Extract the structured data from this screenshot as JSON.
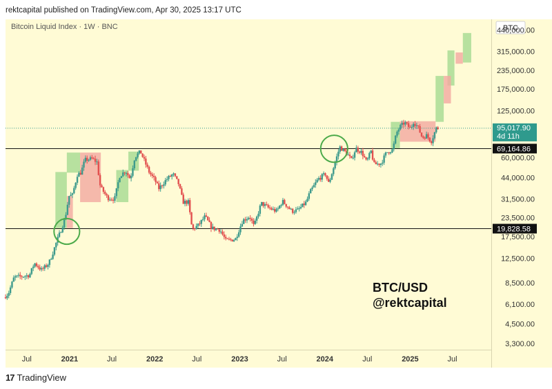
{
  "header": {
    "text": "rektcapital published on TradingView.com, Apr 30, 2025 13:17 UTC"
  },
  "chart": {
    "title": "Bitcoin Liquid Index · 1W · BNC"
  },
  "watermark": {
    "line1": "BTC/USD",
    "line2": "@rektcapital"
  },
  "footer": {
    "brand": "TradingView",
    "logo": "17"
  },
  "colors": {
    "up": "#3d9a8c",
    "down": "#e2504f",
    "green_zone": "#9fd88c",
    "red_zone": "#f3a9a0",
    "circle": "#4caa4a",
    "price_badge": "#2f9a8d"
  },
  "chart_data": {
    "type": "candlestick",
    "scale": "log",
    "ylim": [
      3000,
      520000
    ],
    "xlim": [
      "2020-04-01",
      "2025-12-15"
    ],
    "y_ticks": [
      440000,
      315000,
      235000,
      175000,
      125000,
      95017.9,
      60000,
      44000,
      31500,
      23500,
      17500,
      12500,
      8500,
      6100,
      4500,
      3300
    ],
    "y_tick_labels": [
      "440,000.00",
      "315,000.00",
      "235,000.00",
      "175,000.00",
      "125,000.00",
      "95,017.90",
      "60,000.00",
      "44,000.00",
      "31,500.00",
      "23,500.00",
      "17,500.00",
      "12,500.00",
      "8,500.00",
      "6,100.00",
      "4,500.00",
      "3,300.00"
    ],
    "y_axis_label": "BTC",
    "x_ticks": [
      {
        "date": "2020-07-01",
        "label": "Jul",
        "bold": false
      },
      {
        "date": "2021-01-01",
        "label": "2021",
        "bold": true
      },
      {
        "date": "2021-07-01",
        "label": "Jul",
        "bold": false
      },
      {
        "date": "2022-01-01",
        "label": "2022",
        "bold": true
      },
      {
        "date": "2022-07-01",
        "label": "Jul",
        "bold": false
      },
      {
        "date": "2023-01-01",
        "label": "2023",
        "bold": true
      },
      {
        "date": "2023-07-01",
        "label": "Jul",
        "bold": false
      },
      {
        "date": "2024-01-01",
        "label": "2024",
        "bold": true
      },
      {
        "date": "2024-07-01",
        "label": "Jul",
        "bold": false
      },
      {
        "date": "2025-01-01",
        "label": "2025",
        "bold": true
      },
      {
        "date": "2025-07-01",
        "label": "Jul",
        "bold": false
      }
    ],
    "price_path": [
      [
        "2020-04-01",
        6800
      ],
      [
        "2020-04-20",
        7200
      ],
      [
        "2020-05-15",
        9300
      ],
      [
        "2020-06-15",
        9400
      ],
      [
        "2020-07-20",
        9600
      ],
      [
        "2020-08-10",
        11600
      ],
      [
        "2020-09-10",
        10400
      ],
      [
        "2020-10-10",
        11500
      ],
      [
        "2020-10-25",
        13200
      ],
      [
        "2020-11-15",
        16500
      ],
      [
        "2020-12-01",
        19200
      ],
      [
        "2020-12-20",
        23500
      ],
      [
        "2021-01-05",
        33000
      ],
      [
        "2021-01-20",
        33500
      ],
      [
        "2021-02-10",
        46000
      ],
      [
        "2021-02-25",
        47500
      ],
      [
        "2021-03-15",
        58000
      ],
      [
        "2021-04-15",
        59000
      ],
      [
        "2021-05-05",
        56000
      ],
      [
        "2021-05-20",
        38000
      ],
      [
        "2021-06-20",
        32000
      ],
      [
        "2021-07-20",
        31500
      ],
      [
        "2021-08-10",
        45000
      ],
      [
        "2021-09-05",
        49000
      ],
      [
        "2021-09-25",
        43000
      ],
      [
        "2021-10-15",
        61000
      ],
      [
        "2021-11-08",
        66000
      ],
      [
        "2021-11-25",
        57000
      ],
      [
        "2021-12-15",
        48000
      ],
      [
        "2022-01-10",
        42000
      ],
      [
        "2022-01-25",
        37000
      ],
      [
        "2022-03-01",
        43000
      ],
      [
        "2022-03-28",
        46500
      ],
      [
        "2022-04-20",
        40000
      ],
      [
        "2022-05-10",
        30000
      ],
      [
        "2022-06-01",
        30000
      ],
      [
        "2022-06-18",
        19500
      ],
      [
        "2022-07-15",
        21000
      ],
      [
        "2022-08-12",
        24000
      ],
      [
        "2022-09-10",
        20000
      ],
      [
        "2022-10-15",
        19500
      ],
      [
        "2022-11-09",
        16500
      ],
      [
        "2022-12-20",
        16800
      ],
      [
        "2023-01-20",
        22500
      ],
      [
        "2023-02-20",
        24000
      ],
      [
        "2023-03-10",
        20500
      ],
      [
        "2023-04-10",
        29500
      ],
      [
        "2023-05-10",
        27500
      ],
      [
        "2023-06-15",
        26000
      ],
      [
        "2023-07-10",
        30500
      ],
      [
        "2023-08-20",
        26000
      ],
      [
        "2023-09-15",
        26500
      ],
      [
        "2023-10-20",
        30000
      ],
      [
        "2023-11-05",
        35000
      ],
      [
        "2023-12-10",
        43000
      ],
      [
        "2024-01-10",
        46500
      ],
      [
        "2024-01-25",
        40000
      ],
      [
        "2024-02-15",
        52000
      ],
      [
        "2024-03-12",
        71000
      ],
      [
        "2024-04-15",
        63000
      ],
      [
        "2024-05-01",
        58000
      ],
      [
        "2024-05-20",
        69500
      ],
      [
        "2024-06-15",
        65000
      ],
      [
        "2024-07-05",
        56000
      ],
      [
        "2024-07-25",
        67000
      ],
      [
        "2024-08-05",
        54000
      ],
      [
        "2024-09-05",
        55000
      ],
      [
        "2024-09-28",
        65000
      ],
      [
        "2024-10-25",
        68000
      ],
      [
        "2024-11-10",
        88000
      ],
      [
        "2024-11-25",
        97000
      ],
      [
        "2024-12-15",
        104000
      ],
      [
        "2025-01-10",
        94000
      ],
      [
        "2025-01-22",
        105000
      ],
      [
        "2025-02-10",
        97000
      ],
      [
        "2025-03-01",
        82000
      ],
      [
        "2025-03-20",
        85000
      ],
      [
        "2025-04-08",
        77000
      ],
      [
        "2025-04-30",
        95017.9
      ]
    ],
    "horizontal_lines": [
      {
        "value": 69164.86,
        "label": "69,164.86"
      },
      {
        "value": 19828.58,
        "label": "19,828.58"
      }
    ],
    "current_price": {
      "value": 95017.9,
      "label": "95,017.90",
      "countdown": "4d 11h"
    },
    "green_zones": [
      {
        "x0": "2020-11-01",
        "x1": "2020-12-20",
        "y0": 20000,
        "y1": 48000
      },
      {
        "x0": "2020-12-20",
        "x1": "2021-02-15",
        "y0": 47500,
        "y1": 65000
      },
      {
        "x0": "2021-07-20",
        "x1": "2021-09-10",
        "y0": 30000,
        "y1": 49500
      },
      {
        "x0": "2021-09-10",
        "x1": "2021-10-25",
        "y0": 49000,
        "y1": 66000
      },
      {
        "x0": "2024-10-10",
        "x1": "2024-11-18",
        "y0": 69000,
        "y1": 105000
      },
      {
        "x0": "2025-04-20",
        "x1": "2025-05-25",
        "y0": 105000,
        "y1": 215000
      },
      {
        "x0": "2025-06-10",
        "x1": "2025-07-10",
        "y0": 185000,
        "y1": 320000
      },
      {
        "x0": "2025-08-15",
        "x1": "2025-09-20",
        "y0": 265000,
        "y1": 420000
      }
    ],
    "red_zones": [
      {
        "x0": "2020-12-20",
        "x1": "2021-01-15",
        "y0": 20000,
        "y1": 33000
      },
      {
        "x0": "2021-02-15",
        "x1": "2021-05-15",
        "y0": 30000,
        "y1": 65000
      },
      {
        "x0": "2024-11-18",
        "x1": "2025-04-20",
        "y0": 77000,
        "y1": 106000
      },
      {
        "x0": "2025-05-25",
        "x1": "2025-06-25",
        "y0": 140000,
        "y1": 215000
      },
      {
        "x0": "2025-07-15",
        "x1": "2025-08-15",
        "y0": 260000,
        "y1": 310000
      }
    ],
    "circles": [
      {
        "x": "2020-12-20",
        "y": 19000,
        "rx_days": 55
      },
      {
        "x": "2024-02-10",
        "y": 69000,
        "rx_days": 58
      }
    ]
  }
}
